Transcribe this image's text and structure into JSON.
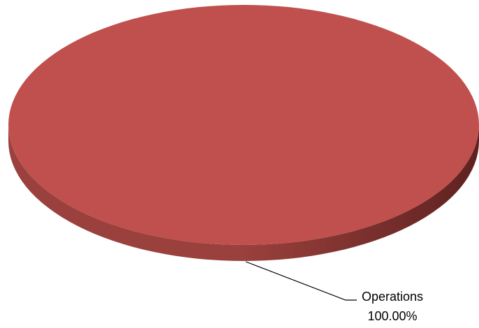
{
  "chart_data": {
    "type": "pie",
    "style": "3d",
    "slices": [
      {
        "label": "Operations",
        "value": 100.0,
        "percent_label": "100.00%",
        "color": "#C0504D"
      }
    ],
    "legend": "none"
  },
  "colors": {
    "top_face": "#C0504D",
    "side_dark": "#5E2220",
    "side_light": "#9A403D",
    "leader_line": "#000000"
  }
}
